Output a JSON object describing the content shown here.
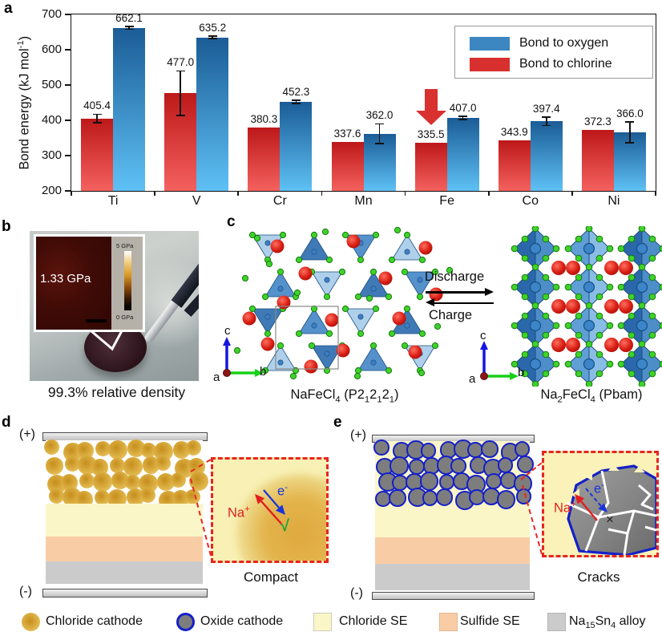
{
  "chart_data": {
    "type": "bar",
    "title": "",
    "categories": [
      "Ti",
      "V",
      "Cr",
      "Mn",
      "Fe",
      "Co",
      "Ni"
    ],
    "series": [
      {
        "name": "Bond to chlorine",
        "legend_color": "#d7302e",
        "color_top": "#bd1819",
        "color_bottom": "#f4615e",
        "values": [
          405.4,
          477.0,
          380.3,
          337.6,
          335.5,
          343.9,
          372.3
        ],
        "errors": [
          12,
          63,
          0,
          0,
          0,
          0,
          0
        ]
      },
      {
        "name": "Bond to oxygen",
        "legend_color": "#3c86c1",
        "color_top": "#1b5c96",
        "color_bottom": "#5ec1f5",
        "values": [
          662.1,
          635.2,
          452.3,
          362.0,
          407.0,
          397.4,
          366.0
        ],
        "errors": [
          4,
          3,
          4,
          28,
          5,
          12,
          30
        ]
      }
    ],
    "legend_order": [
      "Bond to oxygen",
      "Bond to chlorine"
    ],
    "ylabel_rich": "Bond energy (kJ mol^-1^)",
    "ylim": [
      200,
      700
    ],
    "yticks": [
      200,
      300,
      400,
      500,
      600,
      700
    ],
    "grid": false,
    "legend_position": "upper right",
    "annotation": {
      "type": "down-arrow",
      "category": "Fe",
      "series": "Bond to chlorine",
      "color": "#d8312f"
    }
  },
  "panels": {
    "a": {
      "letter": "a"
    },
    "b": {
      "letter": "b",
      "inset_value": "1.33 GPa",
      "scale_top": "5 GPa",
      "scale_bottom": "0 GPa",
      "caption": "99.3% relative density"
    },
    "c": {
      "letter": "c",
      "left_formula": "NaFeCl_4_ (P2_1_2_1_2_1_)",
      "right_formula": "Na_2_FeCl_4_ (Pbam)",
      "discharge": "Discharge",
      "charge": "Charge",
      "axis_a": "a",
      "axis_b": "b",
      "axis_c": "c"
    },
    "d": {
      "letter": "d",
      "plus": "(+)",
      "minus": "(-)",
      "na_ion": "Na^+^",
      "electron": "e^-^",
      "check": "√",
      "caption": "Compact"
    },
    "e": {
      "letter": "e",
      "plus": "(+)",
      "minus": "(-)",
      "na_ion": "Na^+^",
      "electron": "e^-^",
      "cross": "×",
      "caption": "Cracks"
    }
  },
  "bottom_legend": [
    {
      "swatch": "circle-chloride-cathode",
      "label": "Chloride cathode"
    },
    {
      "swatch": "circle-oxide-cathode",
      "label": "Oxide cathode"
    },
    {
      "swatch": "square-chloride-se",
      "label": "Chloride SE"
    },
    {
      "swatch": "square-sulfide-se",
      "label": "Sulfide SE"
    },
    {
      "swatch": "square-alloy",
      "label": "Na_15_Sn_4_ alloy"
    }
  ],
  "colors": {
    "chloride_se": "#fbf6c8",
    "sulfide_se": "#f8cda6",
    "alloy": "#cbcbcb",
    "oxide_particle": "#7d7d7d",
    "oxide_border": "#1520c8",
    "cathode_gold_dark": "#c68e1d",
    "cathode_gold_light": "#edd07a",
    "annotation_red": "#d8312f",
    "na_label": "#e02020",
    "e_label": "#1a35d8",
    "check_green": "#1fa33c"
  }
}
